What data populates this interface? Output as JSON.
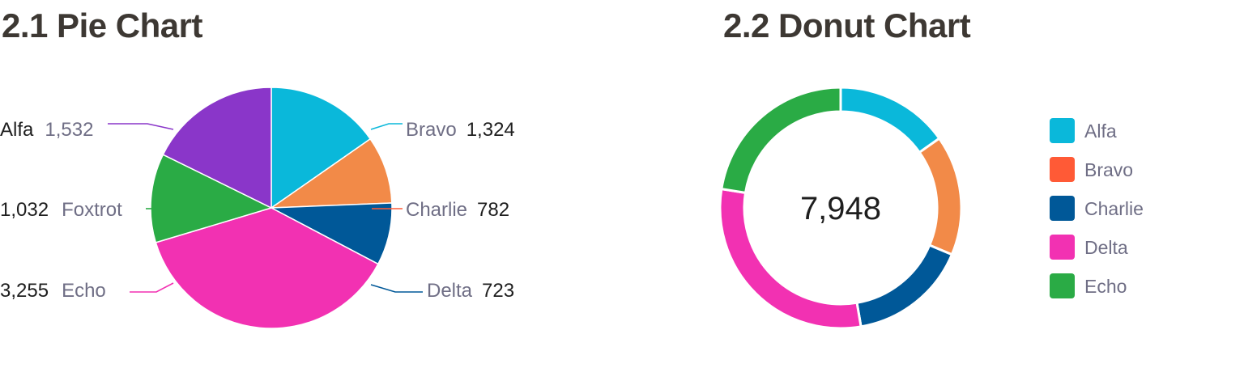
{
  "charts": {
    "pie": {
      "title": "2.1 Pie Chart"
    },
    "donut": {
      "title": "2.2 Donut Chart"
    }
  },
  "chart_data": [
    {
      "type": "pie",
      "title": "2.1 Pie Chart",
      "categories": [
        "Alfa",
        "Bravo",
        "Charlie",
        "Delta",
        "Echo",
        "Foxtrot"
      ],
      "values": [
        1532,
        1324,
        782,
        723,
        3255,
        1032
      ],
      "value_labels": [
        "1,532",
        "1,324",
        "782",
        "723",
        "3,255",
        "1,032"
      ],
      "colors": [
        "#8a36c9",
        "#0ab8da",
        "#f28a48",
        "#005898",
        "#f231b2",
        "#2aab45"
      ],
      "legend": "none"
    },
    {
      "type": "pie",
      "variant": "donut",
      "title": "2.2 Donut Chart",
      "categories": [
        "Alfa",
        "Bravo",
        "Charlie",
        "Delta",
        "Echo"
      ],
      "values": [
        1210,
        1280,
        1270,
        2400,
        1788
      ],
      "center_label": "7,948",
      "slice_colors": [
        "#0ab8da",
        "#f28a48",
        "#005898",
        "#f231b2",
        "#2aab45"
      ],
      "legend_colors": [
        "#0ab8da",
        "#ff5a36",
        "#005898",
        "#f231b2",
        "#2aab45"
      ],
      "legend": "right"
    }
  ]
}
